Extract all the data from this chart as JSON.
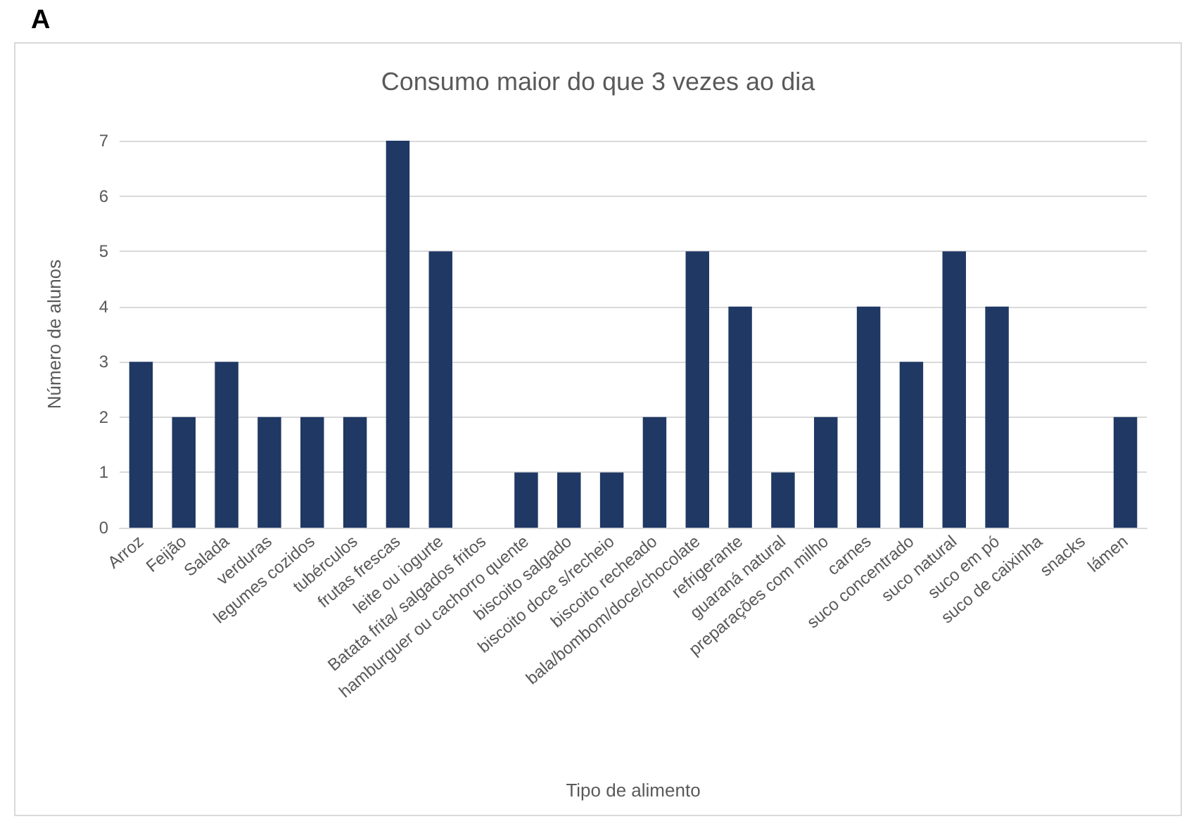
{
  "chart_data": {
    "type": "bar",
    "title": "Consumo maior do que 3 vezes ao dia",
    "xlabel": "Tipo de alimento",
    "ylabel": "Número de alunos",
    "annotations": [
      "A"
    ],
    "categories": [
      "Arroz",
      "Feijão",
      "Salada",
      "verduras",
      "legumes cozidos",
      "tubérculos",
      "frutas frescas",
      "leite ou iogurte",
      "Batata frita/ salgados fritos",
      "hamburguer ou cachorro quente",
      "biscoito salgado",
      "biscoito doce s/recheio",
      "biscoito recheado",
      "bala/bombom/doce/chocolate",
      "refrigerante",
      "guaraná natural",
      "preparações com milho",
      "carnes",
      "suco concentrado",
      "suco natural",
      "suco em pó",
      "suco de caixinha",
      "snacks",
      "lámen"
    ],
    "values": [
      3,
      2,
      3,
      2,
      2,
      2,
      7,
      5,
      0,
      1,
      1,
      1,
      2,
      5,
      4,
      1,
      2,
      4,
      3,
      5,
      4,
      0,
      0,
      2
    ],
    "color": "#1f3864",
    "ylim": [
      0,
      7
    ],
    "yticks": [
      0,
      1,
      2,
      3,
      4,
      5,
      6,
      7
    ],
    "grid": "y"
  }
}
